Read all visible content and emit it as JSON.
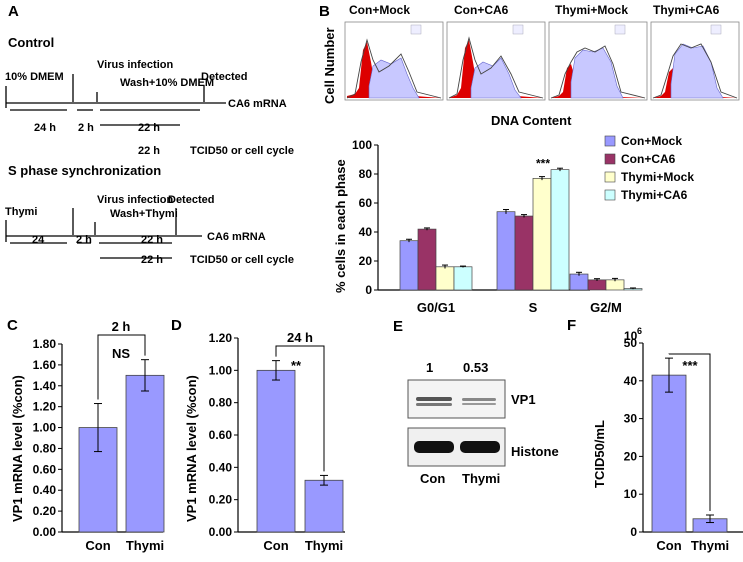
{
  "colors": {
    "blue": "#9999ff",
    "maroon": "#993366",
    "cream": "#ffffcc",
    "cyan": "#ccffff",
    "red": "#dd0000",
    "lav": "#c8c8ff",
    "gray": "#444444"
  },
  "panelA": {
    "letter": "A",
    "control": {
      "title": "Control",
      "medium": "10% DMEM",
      "h24": "24 h",
      "virus": "Virus infection",
      "h2": "2 h",
      "wash": "Wash+10% DMEM",
      "detected": "Detected",
      "h22": "22 h",
      "target": "CA6 mRNA",
      "h22b": "22 h",
      "readout": "TCID50 or cell cycle"
    },
    "sphase": {
      "title": "S phase synchronization",
      "drug": "Thymi",
      "h24": "24",
      "virus": "Virus infection",
      "h2": "2 h",
      "wash": "Wash+Thymi",
      "detected": "Detected",
      "h22": "22 h",
      "target": "CA6 mRNA",
      "h22b": "22 h",
      "readout": "TCID50 or cell cycle"
    }
  },
  "panelB": {
    "letter": "B",
    "hist_titles": [
      "Con+Mock",
      "Con+CA6",
      "Thymi+Mock",
      "Thymi+CA6"
    ],
    "hist_ylabel": "Cell Number",
    "hist_xlabel": "DNA Content"
  },
  "panelC": {
    "letter": "C"
  },
  "panelD": {
    "letter": "D"
  },
  "panelF": {
    "letter": "F",
    "exponent": "6"
  },
  "panelE": {
    "letter": "E",
    "ratio_con": "1",
    "ratio_thymi": "0.53",
    "band1": "VP1",
    "band2": "Histone",
    "lane_con": "Con",
    "lane_thymi": "Thymi"
  },
  "chart_data": [
    {
      "id": "B",
      "type": "bar",
      "ylabel": "% cells in each phase",
      "categories": [
        "G0/G1",
        "S",
        "G2/M"
      ],
      "ylim": [
        0,
        100
      ],
      "yticks": [
        "0",
        "20",
        "40",
        "60",
        "80",
        "100"
      ],
      "series": [
        {
          "name": "Con+Mock",
          "values": [
            34,
            54,
            11
          ],
          "errors": [
            1,
            1.5,
            1.2
          ]
        },
        {
          "name": "Con+CA6",
          "values": [
            42,
            51,
            7
          ],
          "errors": [
            0.8,
            1,
            0.8
          ]
        },
        {
          "name": "Thymi+Mock",
          "values": [
            16,
            77,
            7
          ],
          "errors": [
            1.2,
            1.2,
            1
          ]
        },
        {
          "name": "Thymi+CA6",
          "values": [
            16,
            83,
            1
          ],
          "errors": [
            0.5,
            1,
            0.4
          ]
        }
      ],
      "annotation": "***"
    },
    {
      "id": "C",
      "type": "bar",
      "title": "2 h",
      "ylabel": "VP1 mRNA level (%con)",
      "categories": [
        "Con",
        "Thymi"
      ],
      "values": [
        1.0,
        1.5
      ],
      "errors": [
        0.23,
        0.15
      ],
      "ylim": [
        0,
        1.8
      ],
      "yticks": [
        "0.00",
        "0.20",
        "0.40",
        "0.60",
        "0.80",
        "1.00",
        "1.20",
        "1.40",
        "1.60",
        "1.80"
      ],
      "significance": "NS"
    },
    {
      "id": "D",
      "type": "bar",
      "title": "24 h",
      "ylabel": "VP1 mRNA level (%con)",
      "categories": [
        "Con",
        "Thymi"
      ],
      "values": [
        1.0,
        0.32
      ],
      "errors": [
        0.06,
        0.03
      ],
      "ylim": [
        0,
        1.2
      ],
      "yticks": [
        "0.00",
        "0.20",
        "0.40",
        "0.60",
        "0.80",
        "1.00",
        "1.20"
      ],
      "significance": "**"
    },
    {
      "id": "F",
      "type": "bar",
      "ylabel": "TCID50/mL",
      "categories": [
        "Con",
        "Thymi"
      ],
      "values": [
        41.5,
        3.5
      ],
      "errors": [
        4.5,
        1
      ],
      "ylim": [
        0,
        50
      ],
      "yticks": [
        "0",
        "10",
        "20",
        "30",
        "40",
        "50"
      ],
      "significance": "***"
    }
  ]
}
